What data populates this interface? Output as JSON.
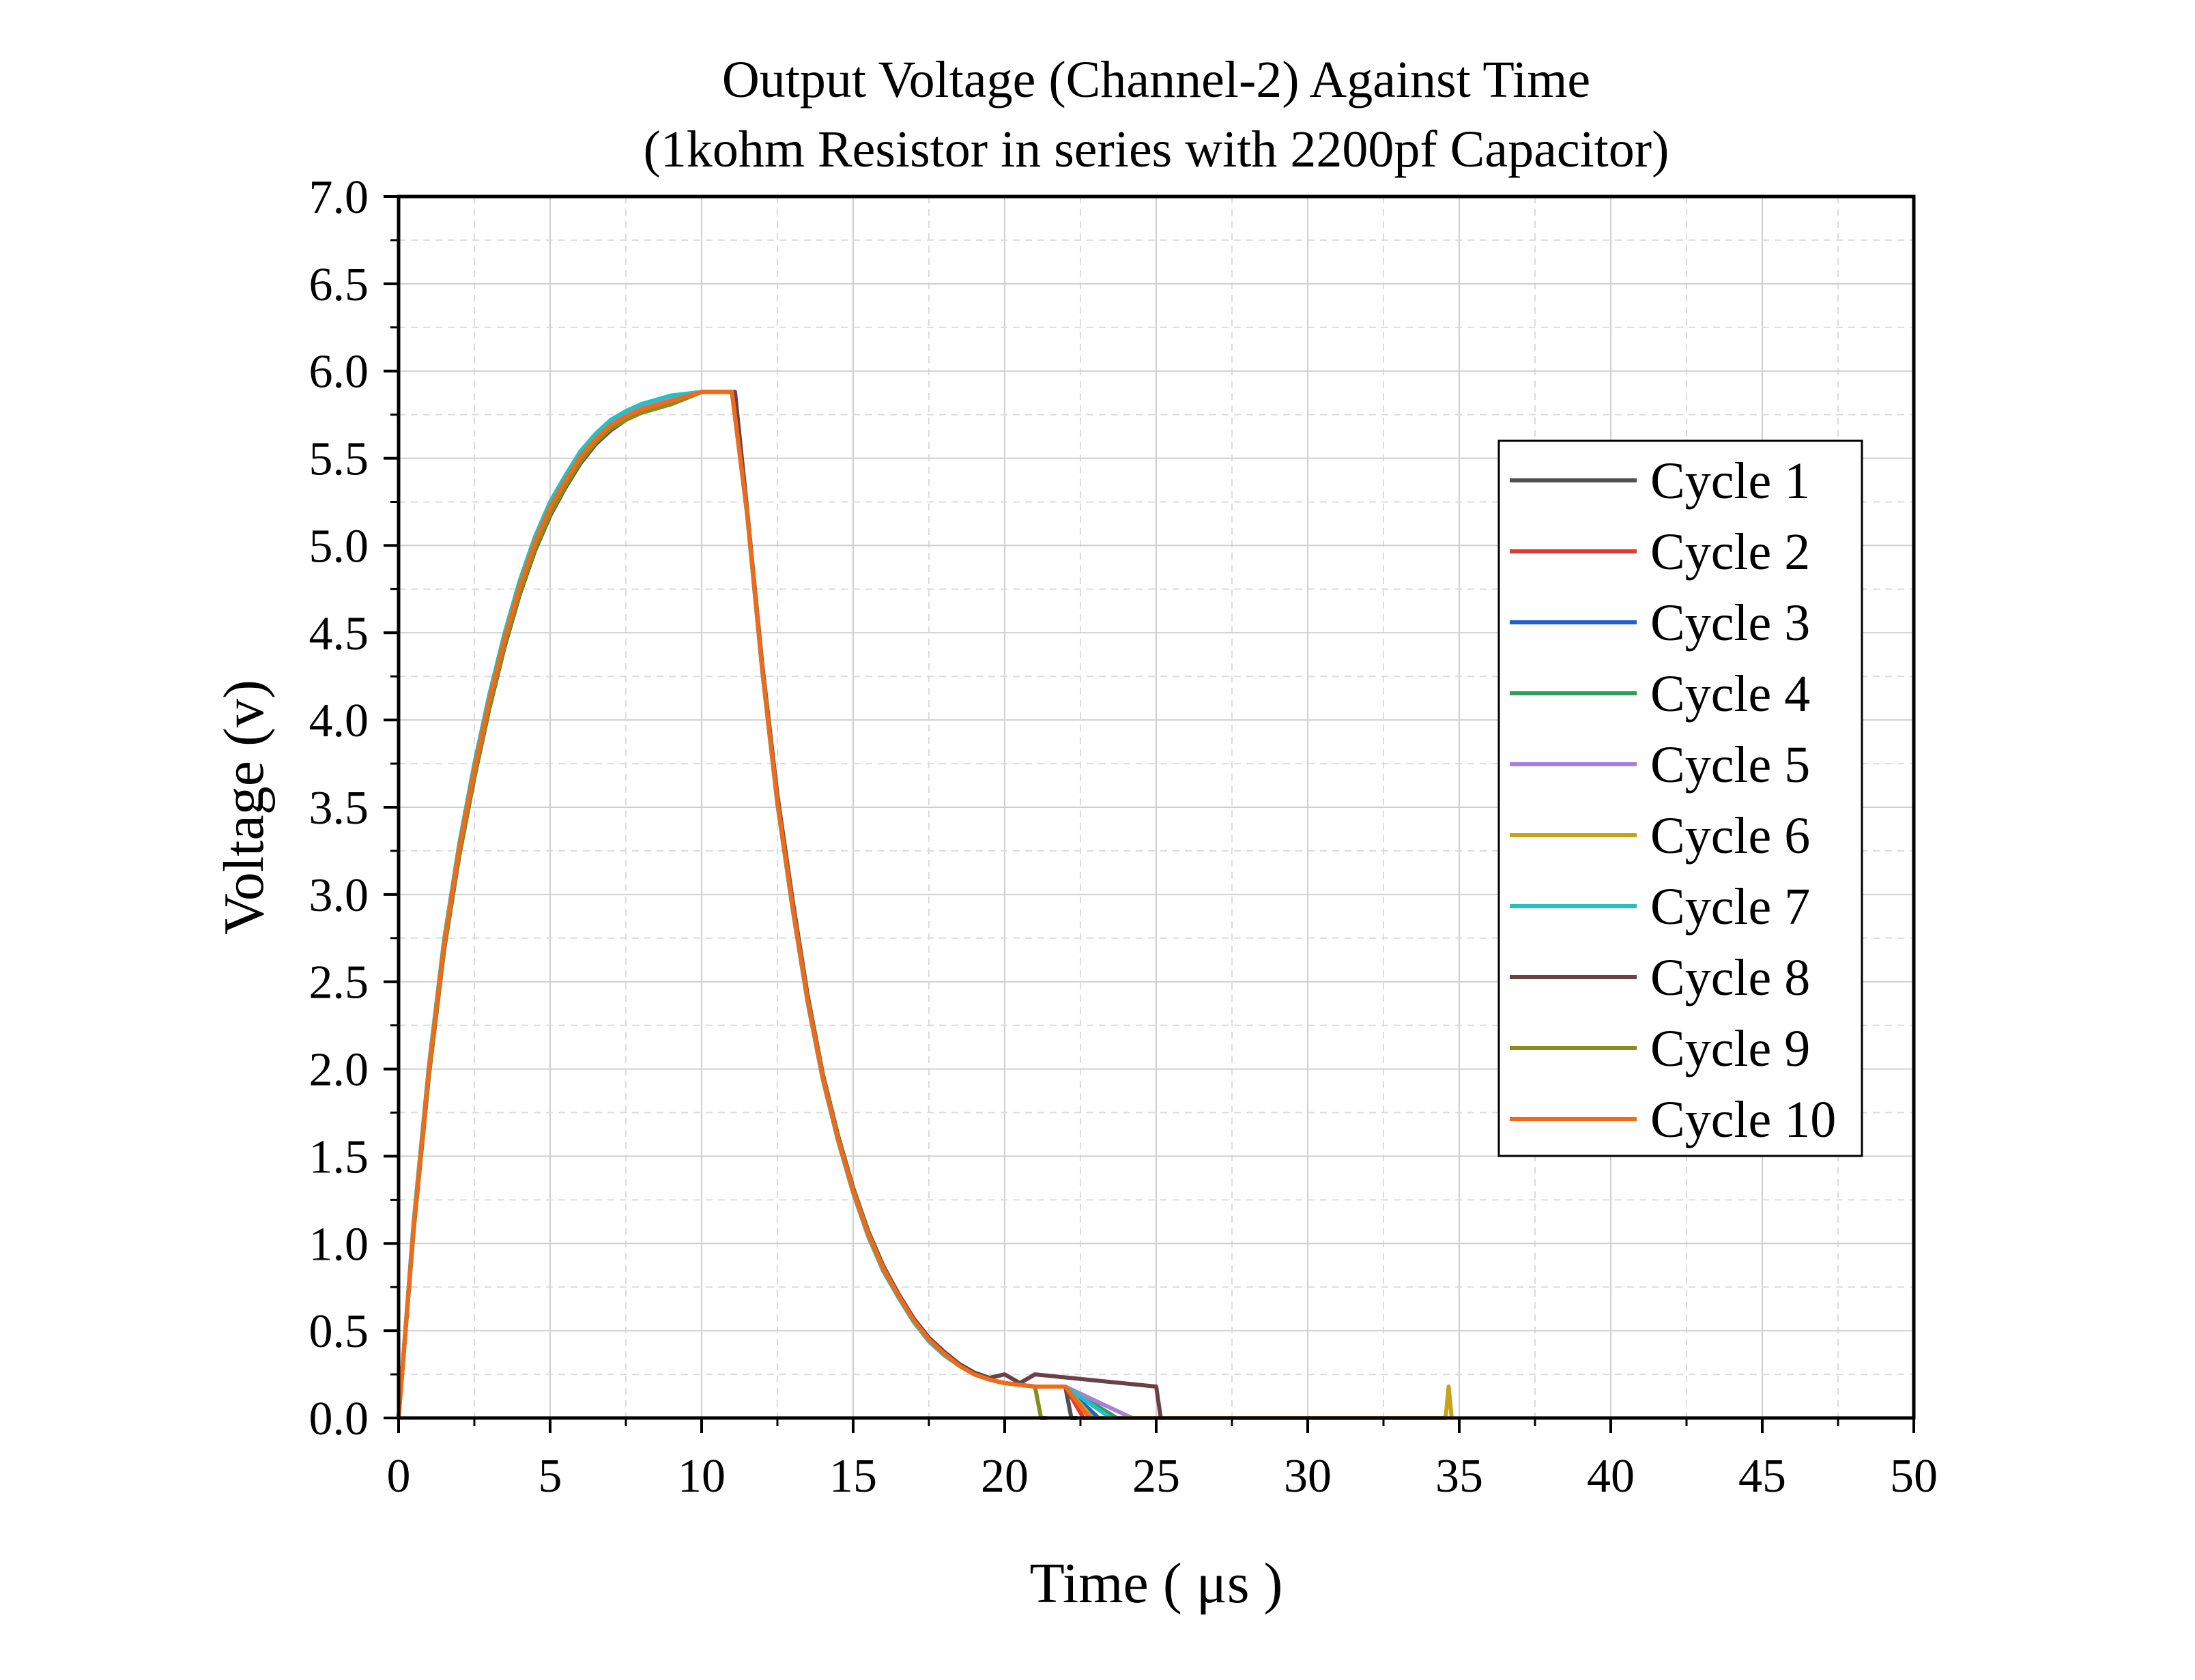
{
  "chart_data": {
    "type": "line",
    "title": "Output Voltage (Channel-2) Against Time",
    "subtitle": "(1kohm Resistor in series with 2200pf Capacitor)",
    "xlabel": "Time ( μs )",
    "ylabel": "Voltage (v)",
    "xlim": [
      0,
      50
    ],
    "ylim": [
      0,
      7
    ],
    "xticks": [
      0,
      5,
      10,
      15,
      20,
      25,
      30,
      35,
      40,
      45,
      50
    ],
    "xtick_labels": [
      "0",
      "5",
      "10",
      "15",
      "20",
      "25",
      "30",
      "35",
      "40",
      "45",
      "50"
    ],
    "yticks": [
      0,
      0.5,
      1,
      1.5,
      2,
      2.5,
      3,
      3.5,
      4,
      4.5,
      5,
      5.5,
      6,
      6.5,
      7
    ],
    "ytick_labels": [
      "0.0",
      "0.5",
      "1.0",
      "1.5",
      "2.0",
      "2.5",
      "3.0",
      "3.5",
      "4.0",
      "4.5",
      "5.0",
      "5.5",
      "6.0",
      "6.5",
      "7.0"
    ],
    "grid": true,
    "legend_position": "right",
    "series": [
      {
        "name": "Cycle 1",
        "color": "#505050",
        "x": [
          0,
          0.5,
          1,
          1.5,
          2,
          2.5,
          3,
          3.5,
          4,
          4.5,
          5,
          5.5,
          6,
          6.5,
          7,
          7.5,
          8,
          9,
          10,
          11.1,
          11.5,
          12,
          12.5,
          13,
          13.5,
          14,
          14.5,
          15,
          15.5,
          16,
          16.5,
          17,
          17.5,
          18,
          18.5,
          19,
          19.5,
          20,
          21,
          22,
          22.2,
          22.4
        ],
        "y": [
          0,
          1.1,
          2.0,
          2.7,
          3.25,
          3.7,
          4.1,
          4.45,
          4.75,
          5.0,
          5.2,
          5.35,
          5.5,
          5.6,
          5.68,
          5.73,
          5.77,
          5.82,
          5.88,
          5.88,
          5.2,
          4.3,
          3.55,
          2.95,
          2.4,
          1.95,
          1.6,
          1.3,
          1.05,
          0.85,
          0.7,
          0.56,
          0.45,
          0.37,
          0.3,
          0.25,
          0.22,
          0.2,
          0.18,
          0.18,
          0.0,
          0.0
        ]
      },
      {
        "name": "Cycle 2",
        "color": "#e03c31",
        "x": [
          0,
          0.5,
          1,
          1.5,
          2,
          2.5,
          3,
          3.5,
          4,
          4.5,
          5,
          5.5,
          6,
          6.5,
          7,
          7.5,
          8,
          9,
          10,
          11.0,
          11.5,
          12,
          12.5,
          13,
          13.5,
          14,
          14.5,
          15,
          15.5,
          16,
          16.5,
          17,
          17.5,
          18,
          18.5,
          19,
          19.5,
          20,
          21,
          22,
          22.6,
          22.8
        ],
        "y": [
          0,
          1.12,
          2.0,
          2.72,
          3.27,
          3.72,
          4.12,
          4.47,
          4.77,
          5.02,
          5.22,
          5.37,
          5.51,
          5.61,
          5.69,
          5.74,
          5.78,
          5.83,
          5.88,
          5.88,
          5.18,
          4.28,
          3.52,
          2.92,
          2.38,
          1.94,
          1.59,
          1.29,
          1.04,
          0.84,
          0.69,
          0.55,
          0.44,
          0.36,
          0.3,
          0.25,
          0.22,
          0.2,
          0.18,
          0.18,
          0.0,
          0.0
        ]
      },
      {
        "name": "Cycle 3",
        "color": "#1f5fcf",
        "x": [
          0,
          0.5,
          1,
          1.5,
          2,
          2.5,
          3,
          3.5,
          4,
          4.5,
          5,
          5.5,
          6,
          6.5,
          7,
          7.5,
          8,
          9,
          10,
          11.0,
          11.5,
          12,
          12.5,
          13,
          13.5,
          14,
          14.5,
          15,
          15.5,
          16,
          16.5,
          17,
          17.5,
          18,
          18.5,
          19,
          19.5,
          20,
          21,
          22,
          23.1,
          23.3
        ],
        "y": [
          0,
          1.1,
          1.98,
          2.7,
          3.24,
          3.69,
          4.1,
          4.44,
          4.74,
          4.99,
          5.19,
          5.35,
          5.49,
          5.6,
          5.68,
          5.73,
          5.77,
          5.82,
          5.88,
          5.88,
          5.19,
          4.29,
          3.53,
          2.93,
          2.39,
          1.95,
          1.6,
          1.3,
          1.05,
          0.85,
          0.7,
          0.56,
          0.45,
          0.37,
          0.3,
          0.25,
          0.22,
          0.2,
          0.18,
          0.18,
          0.0,
          0.0
        ]
      },
      {
        "name": "Cycle 4",
        "color": "#2e9e5b",
        "x": [
          0,
          0.5,
          1,
          1.5,
          2,
          2.5,
          3,
          3.5,
          4,
          4.5,
          5,
          5.5,
          6,
          6.5,
          7,
          7.5,
          8,
          9,
          10,
          11.0,
          11.5,
          12,
          12.5,
          13,
          13.5,
          14,
          14.5,
          15,
          15.5,
          16,
          16.5,
          17,
          17.5,
          18,
          18.5,
          19,
          19.5,
          20,
          21,
          22,
          23.7,
          23.9
        ],
        "y": [
          0,
          1.11,
          1.99,
          2.71,
          3.26,
          3.71,
          4.11,
          4.46,
          4.76,
          5.01,
          5.21,
          5.36,
          5.5,
          5.6,
          5.68,
          5.73,
          5.77,
          5.82,
          5.88,
          5.88,
          5.19,
          4.29,
          3.53,
          2.93,
          2.39,
          1.95,
          1.6,
          1.3,
          1.05,
          0.85,
          0.7,
          0.56,
          0.45,
          0.37,
          0.3,
          0.25,
          0.22,
          0.2,
          0.18,
          0.18,
          0.0,
          0.0
        ]
      },
      {
        "name": "Cycle 5",
        "color": "#a97fd8",
        "x": [
          0,
          0.5,
          1,
          1.5,
          2,
          2.5,
          3,
          3.5,
          4,
          4.5,
          5,
          5.5,
          6,
          6.5,
          7,
          7.5,
          8,
          9,
          10,
          11.0,
          11.5,
          12,
          12.5,
          13,
          13.5,
          14,
          14.5,
          15,
          15.5,
          16,
          16.5,
          17,
          17.5,
          18,
          18.5,
          19,
          19.5,
          20,
          21,
          22,
          24.2,
          24.4
        ],
        "y": [
          0,
          1.13,
          2.01,
          2.73,
          3.28,
          3.73,
          4.13,
          4.48,
          4.78,
          5.03,
          5.23,
          5.38,
          5.52,
          5.62,
          5.7,
          5.76,
          5.8,
          5.85,
          5.88,
          5.88,
          5.18,
          4.28,
          3.52,
          2.92,
          2.38,
          1.94,
          1.59,
          1.29,
          1.04,
          0.84,
          0.69,
          0.55,
          0.44,
          0.36,
          0.3,
          0.25,
          0.22,
          0.2,
          0.18,
          0.18,
          0.0,
          0.0
        ]
      },
      {
        "name": "Cycle 6",
        "color": "#c9a21a",
        "x": [
          0,
          0.5,
          1,
          1.5,
          2,
          2.5,
          3,
          3.5,
          4,
          4.5,
          5,
          5.5,
          6,
          6.5,
          7,
          7.5,
          8,
          9,
          10,
          11.0,
          11.5,
          12,
          12.5,
          13,
          13.5,
          14,
          14.5,
          15,
          15.5,
          16,
          16.5,
          17,
          17.5,
          18,
          18.5,
          19,
          19.5,
          20,
          21,
          22,
          22.9,
          23.1,
          34.55,
          34.65,
          34.75
        ],
        "y": [
          0,
          1.1,
          1.99,
          2.7,
          3.25,
          3.7,
          4.1,
          4.45,
          4.75,
          5.0,
          5.2,
          5.35,
          5.5,
          5.6,
          5.68,
          5.73,
          5.77,
          5.82,
          5.88,
          5.88,
          5.19,
          4.29,
          3.53,
          2.93,
          2.39,
          1.95,
          1.6,
          1.3,
          1.05,
          0.85,
          0.7,
          0.56,
          0.45,
          0.37,
          0.3,
          0.25,
          0.22,
          0.2,
          0.18,
          0.18,
          0.0,
          0.0,
          0.0,
          0.18,
          0.0
        ]
      },
      {
        "name": "Cycle 7",
        "color": "#22c1c3",
        "x": [
          0,
          0.5,
          1,
          1.5,
          2,
          2.5,
          3,
          3.5,
          4,
          4.5,
          5,
          5.5,
          6,
          6.5,
          7,
          7.5,
          8,
          9,
          10,
          11.0,
          11.5,
          12,
          12.5,
          13,
          13.5,
          14,
          14.5,
          15,
          15.5,
          16,
          16.5,
          17,
          17.5,
          18,
          18.5,
          19,
          19.5,
          20,
          21,
          22,
          23.5,
          23.7
        ],
        "y": [
          0,
          1.13,
          2.02,
          2.74,
          3.29,
          3.75,
          4.15,
          4.5,
          4.8,
          5.05,
          5.25,
          5.4,
          5.54,
          5.64,
          5.72,
          5.77,
          5.81,
          5.86,
          5.88,
          5.88,
          5.18,
          4.28,
          3.52,
          2.92,
          2.38,
          1.94,
          1.59,
          1.29,
          1.04,
          0.84,
          0.69,
          0.55,
          0.44,
          0.36,
          0.3,
          0.25,
          0.22,
          0.2,
          0.18,
          0.18,
          0.0,
          0.0
        ]
      },
      {
        "name": "Cycle 8",
        "color": "#6b4148",
        "x": [
          0,
          0.5,
          1,
          1.5,
          2,
          2.5,
          3,
          3.5,
          4,
          4.5,
          5,
          5.5,
          6,
          6.5,
          7,
          7.5,
          8,
          9,
          10,
          11.1,
          11.5,
          12,
          12.5,
          13,
          13.5,
          14,
          14.5,
          15,
          15.5,
          16,
          16.5,
          17,
          17.5,
          18,
          18.5,
          19,
          19.5,
          20,
          20.5,
          21,
          25.0,
          25.15
        ],
        "y": [
          0,
          1.08,
          1.96,
          2.68,
          3.22,
          3.67,
          4.07,
          4.42,
          4.72,
          4.97,
          5.17,
          5.33,
          5.47,
          5.58,
          5.66,
          5.72,
          5.76,
          5.81,
          5.88,
          5.88,
          5.21,
          4.32,
          3.57,
          2.97,
          2.42,
          1.97,
          1.62,
          1.32,
          1.07,
          0.87,
          0.71,
          0.57,
          0.46,
          0.38,
          0.31,
          0.26,
          0.23,
          0.25,
          0.2,
          0.25,
          0.18,
          0.0
        ]
      },
      {
        "name": "Cycle 9",
        "color": "#868f1e",
        "x": [
          0,
          0.5,
          1,
          1.5,
          2,
          2.5,
          3,
          3.5,
          4,
          4.5,
          5,
          5.5,
          6,
          6.5,
          7,
          7.5,
          8,
          9,
          10,
          11.0,
          11.5,
          12,
          12.5,
          13,
          13.5,
          14,
          14.5,
          15,
          15.5,
          16,
          16.5,
          17,
          17.5,
          18,
          18.5,
          19,
          19.5,
          20,
          21,
          21.2,
          21.4
        ],
        "y": [
          0,
          1.09,
          1.97,
          2.69,
          3.23,
          3.68,
          4.08,
          4.43,
          4.73,
          4.98,
          5.18,
          5.34,
          5.48,
          5.59,
          5.67,
          5.72,
          5.76,
          5.81,
          5.88,
          5.88,
          5.2,
          4.3,
          3.54,
          2.94,
          2.4,
          1.96,
          1.61,
          1.31,
          1.06,
          0.86,
          0.7,
          0.56,
          0.45,
          0.37,
          0.3,
          0.25,
          0.22,
          0.2,
          0.18,
          0.0,
          0.0
        ]
      },
      {
        "name": "Cycle 10",
        "color": "#f26a18",
        "x": [
          0,
          0.5,
          1,
          1.5,
          2,
          2.5,
          3,
          3.5,
          4,
          4.5,
          5,
          5.5,
          6,
          6.5,
          7,
          7.5,
          8,
          9,
          10,
          11.0,
          11.5,
          12,
          12.5,
          13,
          13.5,
          14,
          14.5,
          15,
          15.5,
          16,
          16.5,
          17,
          17.5,
          18,
          18.5,
          19,
          19.5,
          20,
          21,
          22,
          22.8,
          23.0
        ],
        "y": [
          0,
          1.11,
          2.0,
          2.72,
          3.27,
          3.72,
          4.12,
          4.47,
          4.77,
          5.02,
          5.22,
          5.37,
          5.51,
          5.61,
          5.69,
          5.74,
          5.78,
          5.83,
          5.88,
          5.88,
          5.19,
          4.29,
          3.53,
          2.93,
          2.39,
          1.95,
          1.6,
          1.3,
          1.05,
          0.85,
          0.7,
          0.56,
          0.45,
          0.37,
          0.3,
          0.25,
          0.22,
          0.2,
          0.18,
          0.18,
          0.0,
          0.0
        ]
      }
    ]
  }
}
